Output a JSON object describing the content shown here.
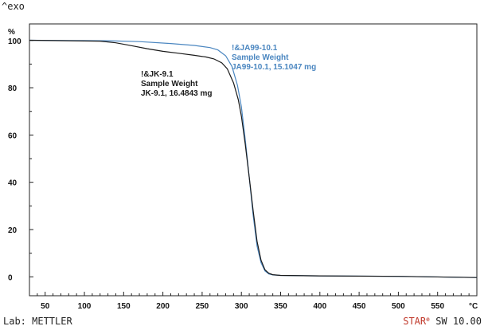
{
  "header": {
    "exo_label": "^exo"
  },
  "footer": {
    "lab": "Lab: METTLER",
    "star": "STAR",
    "star_sup": "e",
    "sw": " SW 10.00"
  },
  "chart_data": {
    "type": "line",
    "title": "",
    "xlabel": "°C",
    "ylabel": "%",
    "xlim": [
      30,
      600
    ],
    "ylim": [
      -8,
      107
    ],
    "x_ticks": [
      50,
      100,
      150,
      200,
      250,
      300,
      350,
      400,
      450,
      500,
      550
    ],
    "y_ticks": [
      0,
      20,
      40,
      60,
      80,
      100
    ],
    "grid": false,
    "series": [
      {
        "name": "JA99-10.1",
        "color": "#4a86c0",
        "annotation": [
          "!&JA99-10.1",
          "Sample Weight",
          "JA99-10.1, 15.1047 mg"
        ],
        "x": [
          30,
          80,
          130,
          170,
          210,
          240,
          260,
          270,
          280,
          288,
          295,
          300,
          305,
          310,
          315,
          320,
          325,
          330,
          335,
          340,
          350,
          400,
          500,
          600
        ],
        "y": [
          100.1,
          100.0,
          99.9,
          99.5,
          98.7,
          97.9,
          97.0,
          96.0,
          93.5,
          89.0,
          81.0,
          72.0,
          58.0,
          42.0,
          26.0,
          13.0,
          6.0,
          2.5,
          1.2,
          0.8,
          0.6,
          0.4,
          0.2,
          -0.3
        ]
      },
      {
        "name": "JK-9.1",
        "color": "#1a1a1a",
        "annotation": [
          "!&JK-9.1",
          "Sample Weight",
          "JK-9.1, 16.4843 mg"
        ],
        "x": [
          30,
          80,
          120,
          140,
          160,
          180,
          200,
          220,
          240,
          255,
          265,
          275,
          282,
          290,
          296,
          300,
          305,
          310,
          315,
          320,
          325,
          330,
          335,
          340,
          350,
          400,
          500,
          600
        ],
        "y": [
          100.1,
          99.9,
          99.7,
          99.0,
          97.8,
          96.5,
          95.4,
          94.6,
          93.7,
          93.0,
          92.2,
          90.5,
          88.0,
          82.0,
          75.0,
          68.0,
          56.0,
          42.0,
          28.0,
          15.0,
          7.0,
          3.0,
          1.5,
          0.9,
          0.6,
          0.4,
          0.2,
          -0.3
        ]
      }
    ]
  }
}
